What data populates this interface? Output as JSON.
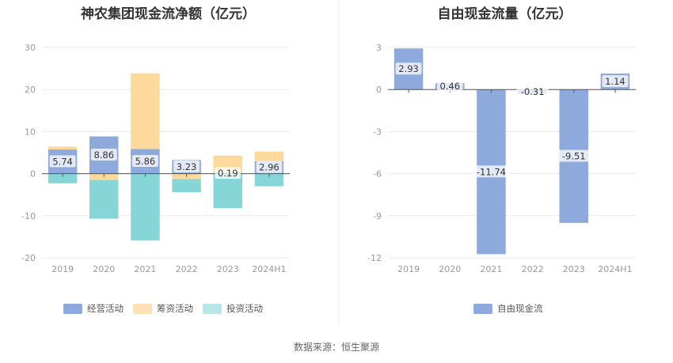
{
  "chart_data": [
    {
      "type": "bar",
      "stacked": true,
      "title": "神农集团现金流净额（亿元）",
      "categories": [
        "2019",
        "2020",
        "2021",
        "2022",
        "2023",
        "2024H1"
      ],
      "series": [
        {
          "name": "经营活动",
          "color": "#8eaadc",
          "values": [
            5.74,
            8.86,
            5.86,
            3.23,
            0.19,
            2.96
          ]
        },
        {
          "name": "筹资活动",
          "color": "#fdd99b",
          "values": [
            0.7,
            -1.5,
            18.0,
            -1.3,
            4.1,
            2.3
          ]
        },
        {
          "name": "投资活动",
          "color": "#86d6d8",
          "values": [
            -2.3,
            -9.2,
            -15.9,
            -3.1,
            -8.2,
            -3.0
          ]
        }
      ],
      "data_labels": [
        "5.74",
        "8.86",
        "5.86",
        "3.23",
        "0.19",
        "2.96"
      ],
      "ylim": [
        -20,
        30
      ],
      "yticks": [
        "-20",
        "-10",
        "0",
        "10",
        "20",
        "30"
      ],
      "legend_position": "bottom"
    },
    {
      "type": "bar",
      "title": "自由现金流量（亿元）",
      "categories": [
        "2019",
        "2020",
        "2021",
        "2022",
        "2023",
        "2024H1"
      ],
      "series": [
        {
          "name": "自由现金流",
          "color": "#8eaadc",
          "values": [
            2.93,
            0.46,
            -11.74,
            -0.31,
            -9.51,
            1.14
          ]
        }
      ],
      "data_labels": [
        "2.93",
        "0.46",
        "-11.74",
        "-0.31",
        "-9.51",
        "1.14"
      ],
      "ylim": [
        -12,
        3
      ],
      "yticks": [
        "-12",
        "-9",
        "-6",
        "-3",
        "0",
        "3"
      ],
      "legend_position": "bottom"
    }
  ],
  "source": "数据来源：恒生聚源"
}
